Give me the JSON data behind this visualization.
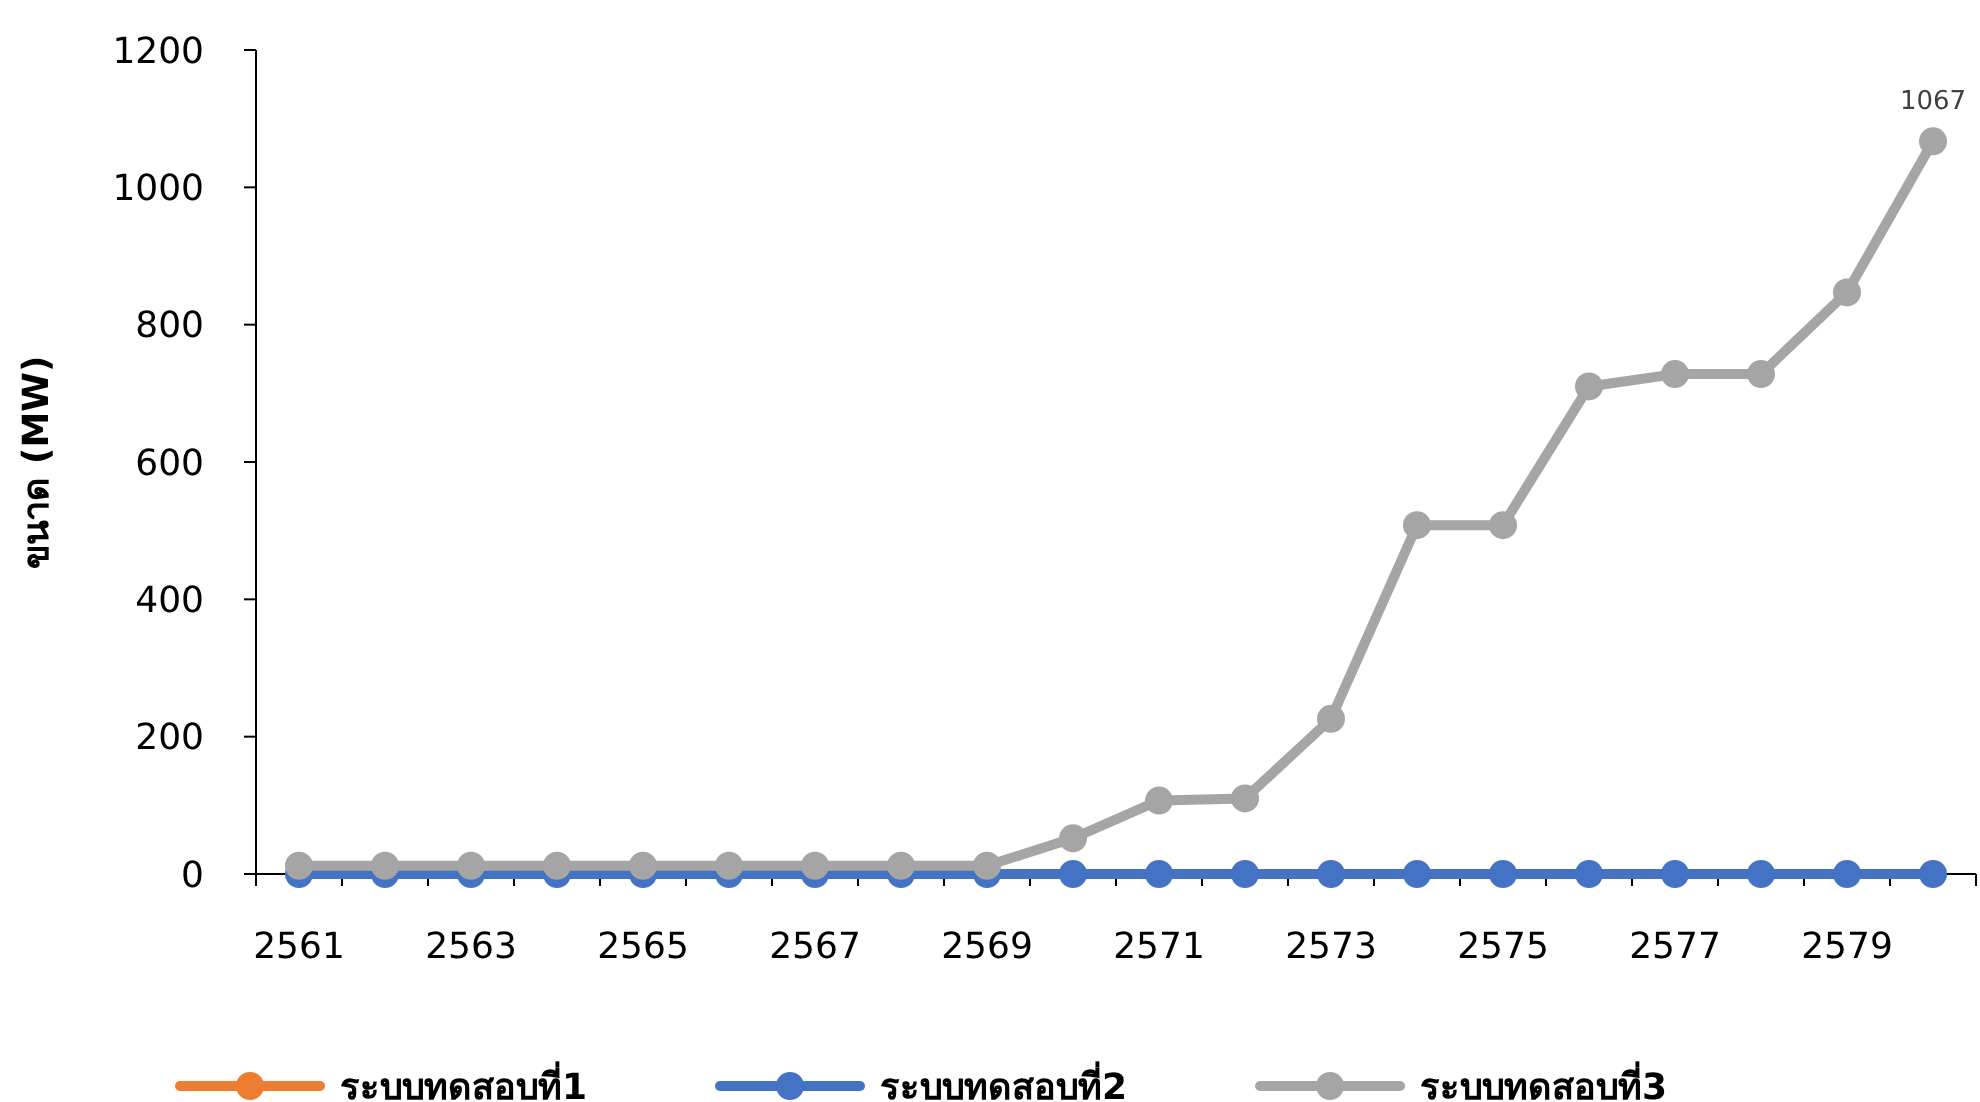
{
  "chart_data": {
    "type": "line",
    "ylabel": "ขนาด (MW)",
    "categories": [
      "2561",
      null,
      "2563",
      null,
      "2565",
      null,
      "2567",
      null,
      "2569",
      null,
      "2571",
      null,
      "2573",
      null,
      "2575",
      null,
      "2577",
      null,
      "2579",
      null
    ],
    "series": [
      {
        "name": "ระบบทดสอบที่1",
        "color": "#ed7d31",
        "values": [
          null,
          null,
          null,
          null,
          null,
          null,
          null,
          null,
          null,
          null,
          null,
          null,
          null,
          null,
          null,
          null,
          null,
          null,
          null,
          null
        ]
      },
      {
        "name": "ระบบทดสอบที่2",
        "color": "#4472c4",
        "values": [
          0,
          0,
          0,
          0,
          0,
          0,
          0,
          0,
          0,
          0,
          0,
          0,
          0,
          0,
          0,
          0,
          0,
          0,
          0,
          0
        ]
      },
      {
        "name": "ระบบทดสอบที่3",
        "color": "#a5a5a5",
        "values": [
          12,
          12,
          12,
          12,
          12,
          12,
          12,
          12,
          12,
          52,
          107,
          110,
          226,
          508,
          508,
          710,
          728,
          728,
          847,
          1067
        ],
        "value_labels": [
          null,
          null,
          null,
          null,
          null,
          null,
          null,
          null,
          null,
          null,
          null,
          null,
          null,
          null,
          null,
          null,
          null,
          null,
          null,
          "1067"
        ]
      }
    ],
    "ylim": [
      0,
      1200
    ],
    "yticks": [
      0,
      200,
      400,
      600,
      800,
      1000,
      1200
    ],
    "grid": false,
    "legend": "bottom",
    "marker": "circle",
    "line_style": "solid"
  }
}
